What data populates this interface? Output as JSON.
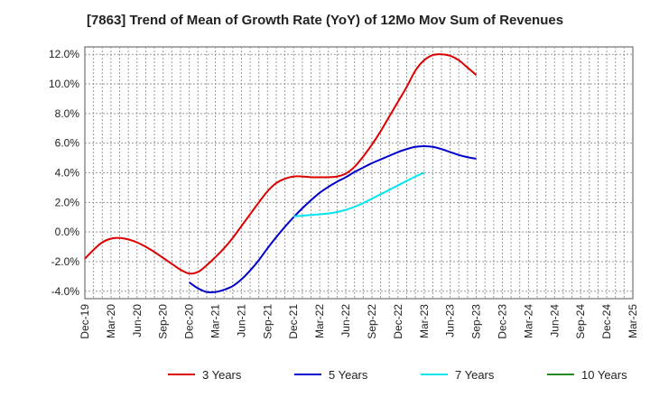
{
  "chart_data": {
    "type": "line",
    "title": "[7863]  Trend of Mean of Growth Rate (YoY) of 12Mo Mov Sum of Revenues",
    "xlabel": "",
    "ylabel": "",
    "x_ticks": [
      "Dec-19",
      "Mar-20",
      "Jun-20",
      "Sep-20",
      "Dec-20",
      "Mar-21",
      "Jun-21",
      "Sep-21",
      "Dec-21",
      "Mar-22",
      "Jun-22",
      "Sep-22",
      "Dec-22",
      "Mar-23",
      "Jun-23",
      "Sep-23",
      "Dec-23",
      "Mar-24",
      "Jun-24",
      "Sep-24",
      "Dec-24",
      "Mar-25"
    ],
    "y_ticks": [
      "-4.0%",
      "-2.0%",
      "0.0%",
      "2.0%",
      "4.0%",
      "6.0%",
      "8.0%",
      "10.0%",
      "12.0%"
    ],
    "y_tick_values": [
      -4,
      -2,
      0,
      2,
      4,
      6,
      8,
      10,
      12
    ],
    "ylim": [
      -4.5,
      12.5
    ],
    "x_index_range": [
      0,
      63
    ],
    "grid": true,
    "legend_position": "bottom",
    "series": [
      {
        "name": "3 Years",
        "color": "#dd0000",
        "points": [
          [
            0,
            -1.8
          ],
          [
            1,
            -1.2
          ],
          [
            2,
            -0.7
          ],
          [
            3,
            -0.45
          ],
          [
            4,
            -0.4
          ],
          [
            5,
            -0.5
          ],
          [
            6,
            -0.7
          ],
          [
            7,
            -1.0
          ],
          [
            8,
            -1.35
          ],
          [
            9,
            -1.75
          ],
          [
            10,
            -2.15
          ],
          [
            11,
            -2.55
          ],
          [
            12,
            -2.8
          ],
          [
            13,
            -2.7
          ],
          [
            14,
            -2.25
          ],
          [
            15,
            -1.7
          ],
          [
            16,
            -1.1
          ],
          [
            17,
            -0.4
          ],
          [
            18,
            0.4
          ],
          [
            19,
            1.2
          ],
          [
            20,
            2.0
          ],
          [
            21,
            2.75
          ],
          [
            22,
            3.3
          ],
          [
            23,
            3.6
          ],
          [
            24,
            3.75
          ],
          [
            25,
            3.75
          ],
          [
            26,
            3.7
          ],
          [
            27,
            3.7
          ],
          [
            28,
            3.7
          ],
          [
            29,
            3.75
          ],
          [
            30,
            3.95
          ],
          [
            31,
            4.4
          ],
          [
            32,
            5.1
          ],
          [
            33,
            5.9
          ],
          [
            34,
            6.8
          ],
          [
            35,
            7.8
          ],
          [
            36,
            8.8
          ],
          [
            37,
            9.8
          ],
          [
            38,
            10.9
          ],
          [
            39,
            11.6
          ],
          [
            40,
            11.95
          ],
          [
            41,
            12.0
          ],
          [
            42,
            11.9
          ],
          [
            43,
            11.6
          ],
          [
            44,
            11.1
          ],
          [
            45,
            10.6
          ]
        ]
      },
      {
        "name": "5 Years",
        "color": "#0000cc",
        "points": [
          [
            12,
            -3.4
          ],
          [
            13,
            -3.8
          ],
          [
            14,
            -4.05
          ],
          [
            15,
            -4.05
          ],
          [
            16,
            -3.9
          ],
          [
            17,
            -3.65
          ],
          [
            18,
            -3.2
          ],
          [
            19,
            -2.6
          ],
          [
            20,
            -1.9
          ],
          [
            21,
            -1.1
          ],
          [
            22,
            -0.35
          ],
          [
            23,
            0.35
          ],
          [
            24,
            1.0
          ],
          [
            25,
            1.6
          ],
          [
            26,
            2.15
          ],
          [
            27,
            2.65
          ],
          [
            28,
            3.05
          ],
          [
            29,
            3.4
          ],
          [
            30,
            3.7
          ],
          [
            31,
            4.05
          ],
          [
            32,
            4.35
          ],
          [
            33,
            4.65
          ],
          [
            34,
            4.9
          ],
          [
            35,
            5.15
          ],
          [
            36,
            5.4
          ],
          [
            37,
            5.6
          ],
          [
            38,
            5.75
          ],
          [
            39,
            5.8
          ],
          [
            40,
            5.75
          ],
          [
            41,
            5.6
          ],
          [
            42,
            5.4
          ],
          [
            43,
            5.2
          ],
          [
            44,
            5.05
          ],
          [
            45,
            4.95
          ]
        ]
      },
      {
        "name": "7 Years",
        "color": "#00e5ee",
        "points": [
          [
            24,
            1.05
          ],
          [
            25,
            1.1
          ],
          [
            26,
            1.15
          ],
          [
            27,
            1.2
          ],
          [
            28,
            1.25
          ],
          [
            29,
            1.35
          ],
          [
            30,
            1.5
          ],
          [
            31,
            1.7
          ],
          [
            32,
            1.95
          ],
          [
            33,
            2.25
          ],
          [
            34,
            2.55
          ],
          [
            35,
            2.85
          ],
          [
            36,
            3.15
          ],
          [
            37,
            3.45
          ],
          [
            38,
            3.75
          ],
          [
            39,
            4.0
          ]
        ]
      },
      {
        "name": "10 Years",
        "color": "#228b22",
        "points": []
      }
    ]
  }
}
